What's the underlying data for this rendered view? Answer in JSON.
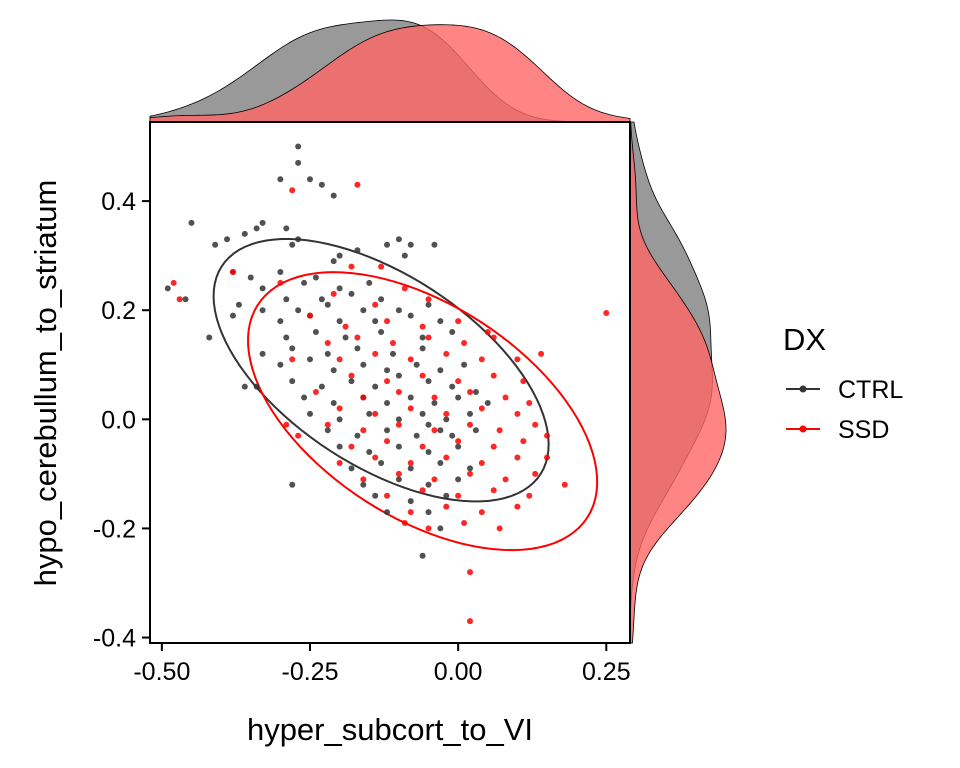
{
  "chart_data": {
    "type": "scatter",
    "xlabel": "hyper_subcort_to_VI",
    "ylabel": "hypo_cerebullum_to_striatum",
    "xlim": [
      -0.52,
      0.29
    ],
    "ylim": [
      -0.41,
      0.545
    ],
    "xticks": [
      -0.5,
      -0.25,
      0.0,
      0.25
    ],
    "xtick_labels": [
      "-0.50",
      "-0.25",
      "0.00",
      "0.25"
    ],
    "yticks": [
      0.4,
      0.2,
      0.0,
      -0.2,
      -0.4
    ],
    "ytick_labels": [
      "0.4",
      "0.2",
      "0.0",
      "-0.2",
      "-0.4"
    ],
    "grid": false,
    "legend": {
      "title": "DX",
      "position": "right",
      "entries": [
        "CTRL",
        "SSD"
      ]
    },
    "marginal_densities": {
      "top": true,
      "right": true
    },
    "confidence_ellipses": true,
    "series": [
      {
        "name": "CTRL",
        "color": "#333333",
        "density_color": "#7f7f7f",
        "ellipse": {
          "center": [
            -0.13,
            0.09
          ],
          "radius_major": 0.33,
          "radius_minor": 0.17,
          "angle_deg": -37
        },
        "points": [
          [
            -0.27,
            0.5
          ],
          [
            -0.27,
            0.47
          ],
          [
            -0.25,
            0.44
          ],
          [
            -0.3,
            0.44
          ],
          [
            -0.23,
            0.43
          ],
          [
            -0.21,
            0.41
          ],
          [
            -0.45,
            0.36
          ],
          [
            -0.34,
            0.35
          ],
          [
            -0.33,
            0.36
          ],
          [
            -0.29,
            0.35
          ],
          [
            -0.27,
            0.33
          ],
          [
            -0.36,
            0.34
          ],
          [
            -0.28,
            0.32
          ],
          [
            -0.2,
            0.3
          ],
          [
            -0.17,
            0.31
          ],
          [
            -0.39,
            0.33
          ],
          [
            -0.41,
            0.32
          ],
          [
            -0.1,
            0.33
          ],
          [
            -0.12,
            0.32
          ],
          [
            -0.04,
            0.32
          ],
          [
            -0.08,
            0.32
          ],
          [
            -0.21,
            0.29
          ],
          [
            -0.09,
            0.3
          ],
          [
            -0.38,
            0.27
          ],
          [
            -0.35,
            0.26
          ],
          [
            -0.3,
            0.27
          ],
          [
            -0.26,
            0.25
          ],
          [
            -0.24,
            0.26
          ],
          [
            -0.2,
            0.24
          ],
          [
            -0.15,
            0.25
          ],
          [
            -0.33,
            0.24
          ],
          [
            -0.29,
            0.22
          ],
          [
            -0.23,
            0.22
          ],
          [
            -0.18,
            0.23
          ],
          [
            -0.13,
            0.22
          ],
          [
            -0.49,
            0.24
          ],
          [
            -0.46,
            0.22
          ],
          [
            -0.37,
            0.21
          ],
          [
            -0.33,
            0.2
          ],
          [
            -0.27,
            0.2
          ],
          [
            -0.22,
            0.21
          ],
          [
            -0.16,
            0.2
          ],
          [
            -0.1,
            0.2
          ],
          [
            -0.05,
            0.21
          ],
          [
            -0.38,
            0.19
          ],
          [
            -0.3,
            0.18
          ],
          [
            -0.25,
            0.19
          ],
          [
            -0.2,
            0.18
          ],
          [
            -0.14,
            0.18
          ],
          [
            -0.08,
            0.19
          ],
          [
            -0.03,
            0.18
          ],
          [
            -0.29,
            0.15
          ],
          [
            -0.24,
            0.16
          ],
          [
            -0.19,
            0.15
          ],
          [
            -0.13,
            0.16
          ],
          [
            -0.06,
            0.15
          ],
          [
            -0.01,
            0.16
          ],
          [
            -0.42,
            0.15
          ],
          [
            -0.33,
            0.12
          ],
          [
            -0.28,
            0.13
          ],
          [
            -0.22,
            0.12
          ],
          [
            -0.17,
            0.13
          ],
          [
            -0.11,
            0.12
          ],
          [
            -0.06,
            0.13
          ],
          [
            -0.3,
            0.1
          ],
          [
            -0.25,
            0.11
          ],
          [
            -0.21,
            0.09
          ],
          [
            -0.16,
            0.1
          ],
          [
            -0.12,
            0.09
          ],
          [
            -0.07,
            0.1
          ],
          [
            -0.03,
            0.09
          ],
          [
            0.01,
            0.1
          ],
          [
            -0.28,
            0.07
          ],
          [
            -0.23,
            0.06
          ],
          [
            -0.18,
            0.07
          ],
          [
            -0.14,
            0.06
          ],
          [
            -0.1,
            0.08
          ],
          [
            -0.05,
            0.07
          ],
          [
            -0.01,
            0.06
          ],
          [
            0.03,
            0.05
          ],
          [
            -0.36,
            0.06
          ],
          [
            -0.34,
            0.06
          ],
          [
            -0.26,
            0.04
          ],
          [
            -0.21,
            0.03
          ],
          [
            -0.16,
            0.04
          ],
          [
            -0.12,
            0.03
          ],
          [
            -0.08,
            0.04
          ],
          [
            -0.04,
            0.03
          ],
          [
            0.0,
            0.04
          ],
          [
            0.05,
            0.03
          ],
          [
            -0.25,
            0.01
          ],
          [
            -0.2,
            0.0
          ],
          [
            -0.15,
            0.01
          ],
          [
            -0.1,
            0.0
          ],
          [
            -0.06,
            0.01
          ],
          [
            -0.02,
            0.0
          ],
          [
            0.02,
            0.01
          ],
          [
            -0.05,
            -0.01
          ],
          [
            -0.03,
            -0.02
          ],
          [
            -0.07,
            -0.03
          ],
          [
            -0.22,
            -0.02
          ],
          [
            -0.17,
            -0.03
          ],
          [
            -0.12,
            -0.02
          ],
          [
            -0.01,
            -0.03
          ],
          [
            0.03,
            -0.02
          ],
          [
            -0.2,
            -0.05
          ],
          [
            -0.15,
            -0.06
          ],
          [
            -0.1,
            -0.05
          ],
          [
            -0.05,
            -0.06
          ],
          [
            0.0,
            -0.05
          ],
          [
            -0.18,
            -0.09
          ],
          [
            -0.13,
            -0.08
          ],
          [
            -0.08,
            -0.09
          ],
          [
            -0.03,
            -0.08
          ],
          [
            0.02,
            -0.09
          ],
          [
            -0.16,
            -0.12
          ],
          [
            -0.1,
            -0.11
          ],
          [
            -0.05,
            -0.12
          ],
          [
            0.0,
            -0.11
          ],
          [
            -0.28,
            -0.12
          ],
          [
            -0.14,
            -0.14
          ],
          [
            -0.08,
            -0.15
          ],
          [
            -0.02,
            -0.14
          ],
          [
            -0.12,
            -0.17
          ],
          [
            -0.05,
            -0.17
          ],
          [
            -0.03,
            -0.2
          ],
          [
            -0.06,
            -0.25
          ]
        ]
      },
      {
        "name": "SSD",
        "color": "#ff0000",
        "density_color": "#ff6666",
        "ellipse": {
          "center": [
            -0.06,
            0.015
          ],
          "radius_major": 0.34,
          "radius_minor": 0.19,
          "angle_deg": -37
        },
        "points": [
          [
            -0.28,
            0.42
          ],
          [
            -0.17,
            0.43
          ],
          [
            -0.48,
            0.25
          ],
          [
            -0.47,
            0.22
          ],
          [
            -0.38,
            0.27
          ],
          [
            -0.3,
            0.25
          ],
          [
            -0.18,
            0.28
          ],
          [
            -0.13,
            0.28
          ],
          [
            -0.21,
            0.23
          ],
          [
            -0.14,
            0.21
          ],
          [
            -0.09,
            0.24
          ],
          [
            -0.05,
            0.22
          ],
          [
            0.25,
            0.195
          ],
          [
            -0.25,
            0.19
          ],
          [
            -0.19,
            0.17
          ],
          [
            -0.12,
            0.18
          ],
          [
            -0.06,
            0.17
          ],
          [
            0.0,
            0.18
          ],
          [
            0.05,
            0.16
          ],
          [
            -0.22,
            0.14
          ],
          [
            -0.17,
            0.15
          ],
          [
            -0.11,
            0.14
          ],
          [
            -0.05,
            0.15
          ],
          [
            0.01,
            0.14
          ],
          [
            0.06,
            0.15
          ],
          [
            -0.28,
            0.11
          ],
          [
            -0.2,
            0.11
          ],
          [
            -0.14,
            0.12
          ],
          [
            -0.08,
            0.11
          ],
          [
            -0.02,
            0.12
          ],
          [
            0.04,
            0.11
          ],
          [
            0.1,
            0.11
          ],
          [
            0.14,
            0.12
          ],
          [
            -0.18,
            0.08
          ],
          [
            -0.12,
            0.07
          ],
          [
            -0.06,
            0.08
          ],
          [
            0.0,
            0.07
          ],
          [
            0.06,
            0.08
          ],
          [
            0.11,
            0.07
          ],
          [
            -0.24,
            0.05
          ],
          [
            -0.16,
            0.04
          ],
          [
            -0.1,
            0.05
          ],
          [
            -0.04,
            0.04
          ],
          [
            0.02,
            0.05
          ],
          [
            0.08,
            0.04
          ],
          [
            0.12,
            0.03
          ],
          [
            -0.2,
            0.02
          ],
          [
            -0.14,
            0.01
          ],
          [
            -0.08,
            0.02
          ],
          [
            -0.02,
            0.01
          ],
          [
            0.04,
            0.02
          ],
          [
            0.1,
            0.01
          ],
          [
            -0.22,
            -0.01
          ],
          [
            -0.16,
            -0.02
          ],
          [
            -0.1,
            -0.01
          ],
          [
            -0.04,
            -0.02
          ],
          [
            0.02,
            -0.01
          ],
          [
            0.07,
            -0.02
          ],
          [
            0.13,
            -0.01
          ],
          [
            -0.29,
            -0.01
          ],
          [
            -0.27,
            -0.03
          ],
          [
            -0.18,
            -0.05
          ],
          [
            -0.12,
            -0.04
          ],
          [
            -0.06,
            -0.05
          ],
          [
            0.0,
            -0.04
          ],
          [
            0.06,
            -0.05
          ],
          [
            0.11,
            -0.04
          ],
          [
            0.15,
            -0.03
          ],
          [
            -0.2,
            -0.08
          ],
          [
            -0.14,
            -0.07
          ],
          [
            -0.08,
            -0.08
          ],
          [
            -0.02,
            -0.07
          ],
          [
            0.04,
            -0.08
          ],
          [
            0.1,
            -0.07
          ],
          [
            0.15,
            -0.07
          ],
          [
            -0.16,
            -0.11
          ],
          [
            -0.1,
            -0.1
          ],
          [
            -0.04,
            -0.11
          ],
          [
            0.02,
            -0.1
          ],
          [
            0.08,
            -0.11
          ],
          [
            0.13,
            -0.1
          ],
          [
            -0.12,
            -0.14
          ],
          [
            -0.06,
            -0.13
          ],
          [
            0.0,
            -0.14
          ],
          [
            0.06,
            -0.13
          ],
          [
            0.12,
            -0.14
          ],
          [
            0.18,
            -0.12
          ],
          [
            -0.08,
            -0.17
          ],
          [
            -0.02,
            -0.16
          ],
          [
            0.04,
            -0.17
          ],
          [
            0.1,
            -0.16
          ],
          [
            -0.09,
            -0.19
          ],
          [
            -0.05,
            -0.2
          ],
          [
            0.01,
            -0.19
          ],
          [
            0.07,
            -0.2
          ],
          [
            0.02,
            -0.28
          ],
          [
            0.02,
            -0.37
          ]
        ]
      }
    ]
  }
}
